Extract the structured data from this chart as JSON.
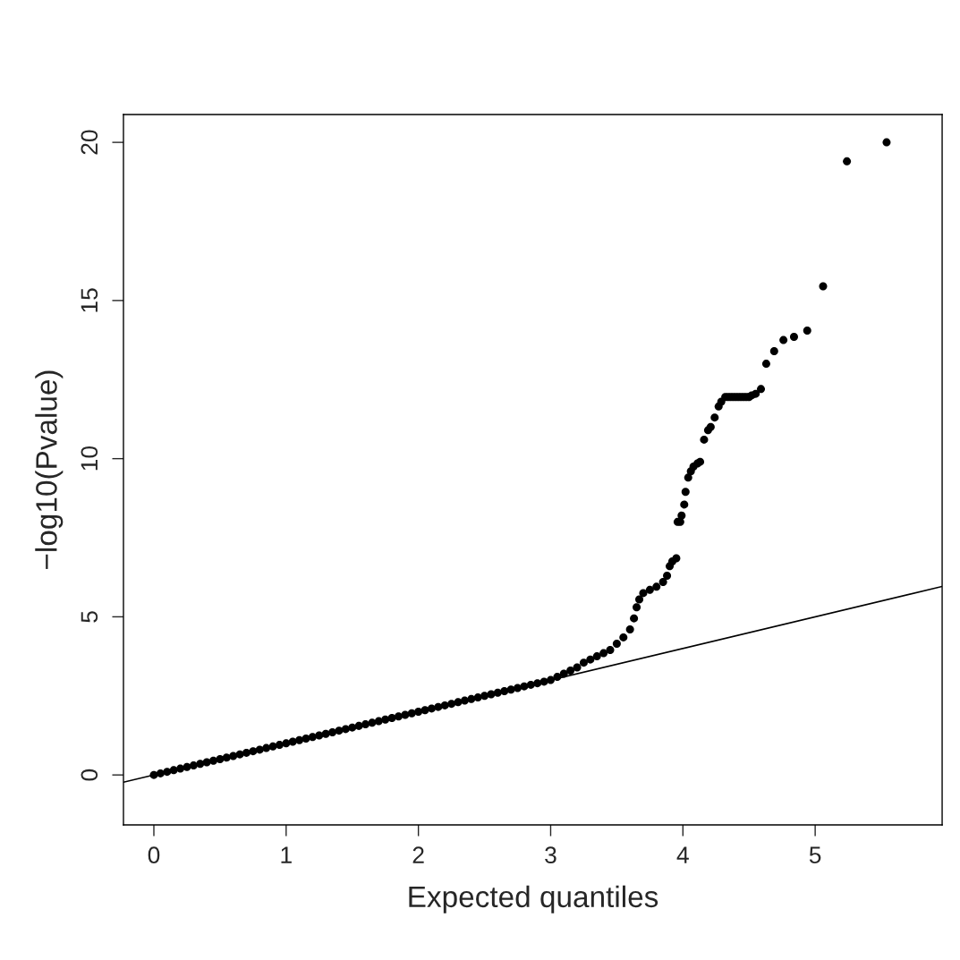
{
  "chart_data": {
    "type": "scatter",
    "xlabel": "Expected quantiles",
    "ylabel": "−log10(Pvalue)",
    "xlim": [
      -0.23,
      5.96
    ],
    "ylim": [
      -1.58,
      20.88
    ],
    "xticks": [
      0,
      1,
      2,
      3,
      4,
      5
    ],
    "yticks": [
      0,
      5,
      10,
      15,
      20
    ],
    "grid": false,
    "series": [
      {
        "marker": "circle",
        "color": "#000000",
        "x": [
          0,
          0.05,
          0.1,
          0.15,
          0.2,
          0.25,
          0.3,
          0.35,
          0.4,
          0.45,
          0.5,
          0.55,
          0.6,
          0.65,
          0.7,
          0.75,
          0.8,
          0.85,
          0.9,
          0.95,
          1.0,
          1.05,
          1.1,
          1.15,
          1.2,
          1.25,
          1.3,
          1.35,
          1.4,
          1.45,
          1.5,
          1.55,
          1.6,
          1.65,
          1.7,
          1.75,
          1.8,
          1.85,
          1.9,
          1.95,
          2.0,
          2.05,
          2.1,
          2.15,
          2.2,
          2.25,
          2.3,
          2.35,
          2.4,
          2.45,
          2.5,
          2.55,
          2.6,
          2.65,
          2.7,
          2.75,
          2.8,
          2.85,
          2.9,
          2.95,
          3.0,
          3.05,
          3.1,
          3.15,
          3.2,
          3.25,
          3.3,
          3.35,
          3.4,
          3.45,
          3.5,
          3.55,
          3.6,
          3.63,
          3.65,
          3.67,
          3.7,
          3.75,
          3.8,
          3.85,
          3.88,
          3.9,
          3.92,
          3.95,
          3.96,
          3.98,
          3.99,
          4.01,
          4.02,
          4.04,
          4.06,
          4.08,
          4.11,
          4.13,
          4.16,
          4.19,
          4.21,
          4.24,
          4.27,
          4.29,
          4.32,
          4.34,
          4.36,
          4.38,
          4.4,
          4.42,
          4.44,
          4.46,
          4.48,
          4.5,
          4.52,
          4.55,
          4.59,
          4.63,
          4.69,
          4.76,
          4.84,
          4.94,
          5.06,
          5.24,
          5.54
        ],
        "values": [
          0,
          0.05,
          0.1,
          0.15,
          0.2,
          0.25,
          0.3,
          0.35,
          0.4,
          0.45,
          0.5,
          0.55,
          0.6,
          0.65,
          0.7,
          0.75,
          0.8,
          0.85,
          0.9,
          0.95,
          1.0,
          1.05,
          1.1,
          1.15,
          1.2,
          1.25,
          1.3,
          1.35,
          1.4,
          1.45,
          1.5,
          1.55,
          1.6,
          1.65,
          1.7,
          1.75,
          1.8,
          1.85,
          1.9,
          1.95,
          2.0,
          2.05,
          2.1,
          2.15,
          2.2,
          2.25,
          2.3,
          2.35,
          2.4,
          2.45,
          2.5,
          2.55,
          2.6,
          2.65,
          2.7,
          2.75,
          2.8,
          2.85,
          2.9,
          2.95,
          3.0,
          3.1,
          3.2,
          3.3,
          3.4,
          3.55,
          3.65,
          3.75,
          3.85,
          3.95,
          4.15,
          4.35,
          4.6,
          4.95,
          5.3,
          5.55,
          5.75,
          5.85,
          5.95,
          6.1,
          6.3,
          6.6,
          6.75,
          6.85,
          8.0,
          8.0,
          8.2,
          8.55,
          8.95,
          9.4,
          9.6,
          9.75,
          9.85,
          9.9,
          10.6,
          10.9,
          11.0,
          11.3,
          11.65,
          11.8,
          11.95,
          11.95,
          11.95,
          11.95,
          11.95,
          11.95,
          11.95,
          11.95,
          11.95,
          11.95,
          12.0,
          12.05,
          12.2,
          13.0,
          13.4,
          13.75,
          13.85,
          14.05,
          15.45,
          19.4,
          20.0
        ]
      },
      {
        "type": "line",
        "marker": "none",
        "color": "#000000",
        "x": [
          -0.23,
          5.96
        ],
        "values": [
          -0.23,
          5.96
        ]
      }
    ]
  }
}
